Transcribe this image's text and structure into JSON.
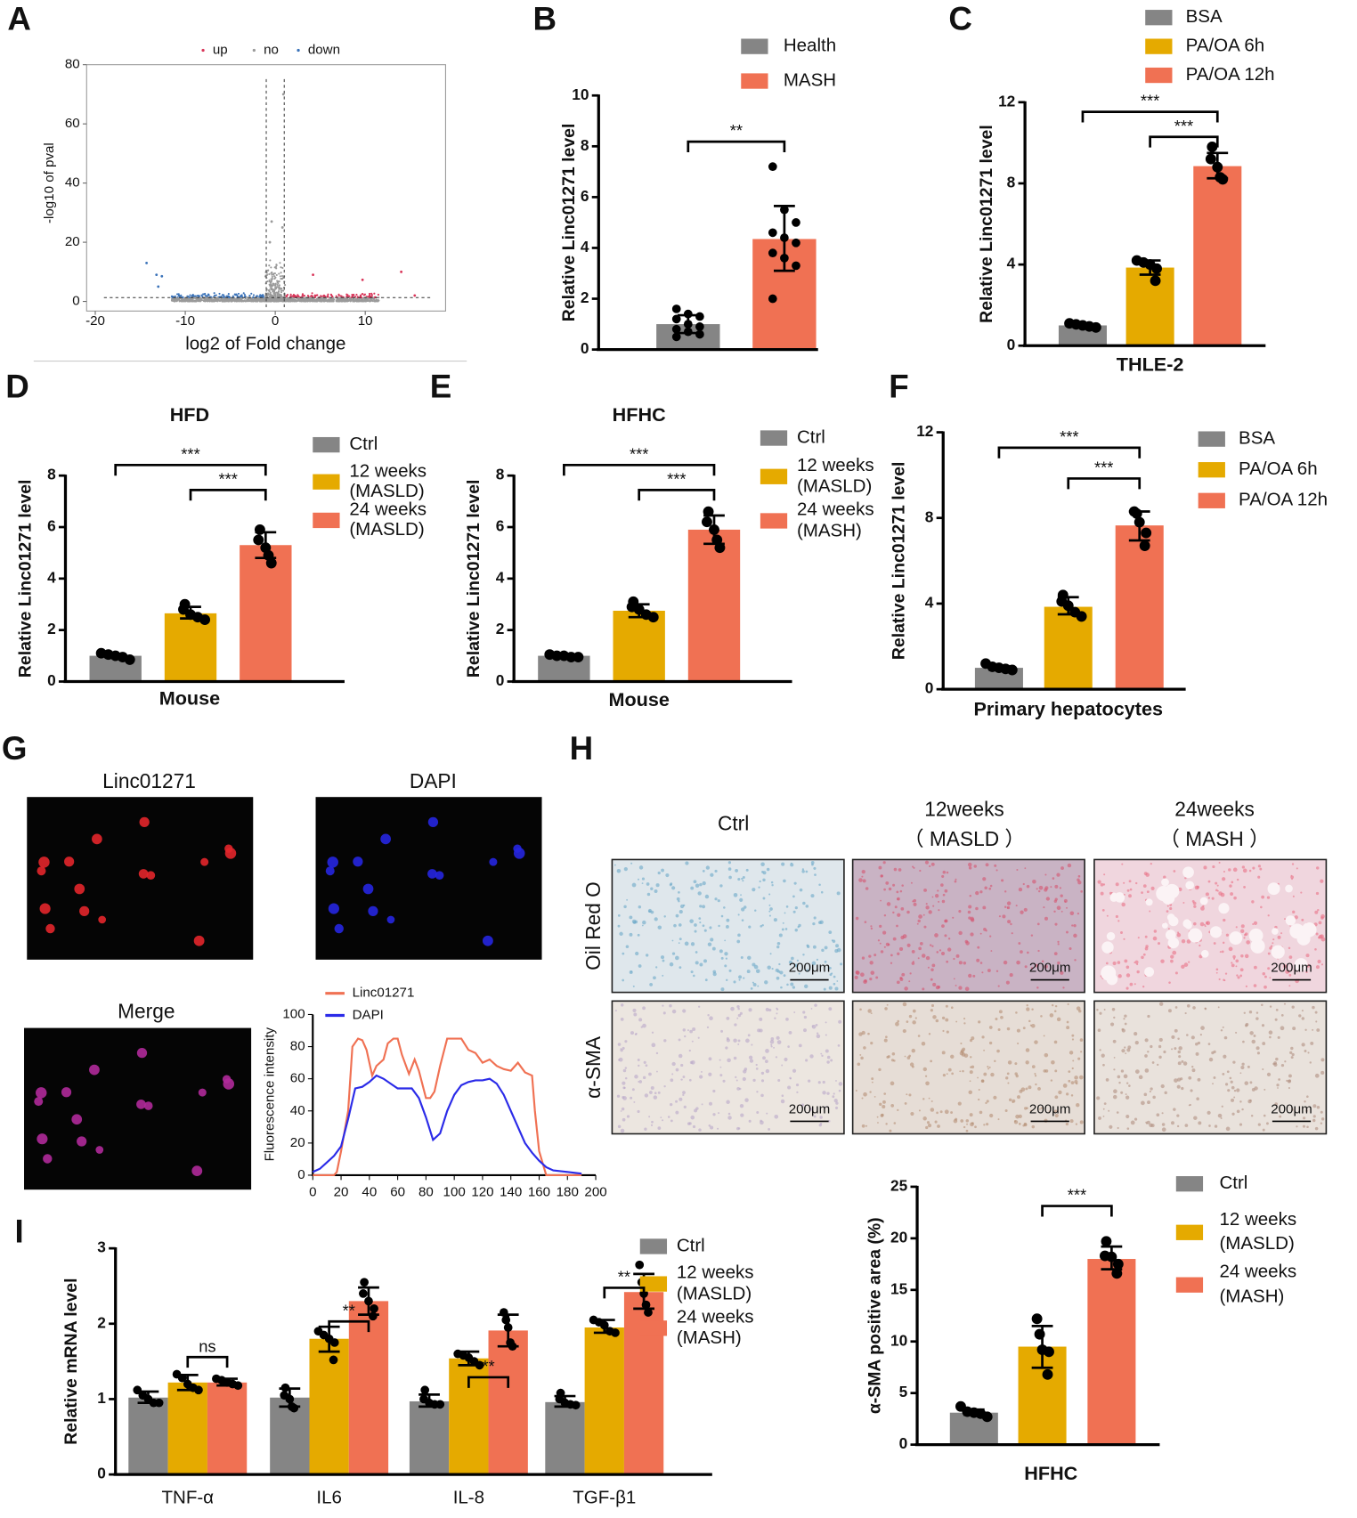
{
  "panel_labels": [
    "A",
    "B",
    "C",
    "D",
    "E",
    "F",
    "G",
    "H",
    "I"
  ],
  "colors": {
    "gray": "#858585",
    "yellow": "#E5AA00",
    "salmon": "#F07153",
    "up": "#D9365A",
    "no": "#9A9A9A",
    "down": "#3B73B9",
    "linc": "#F07153",
    "dapi": "#2B2BE8"
  },
  "chart_data": [
    {
      "panel": "A",
      "type": "scatter",
      "title": "",
      "xlabel": "log2 of Fold change",
      "ylabel": "-log10 of pval",
      "xticks": [
        -20,
        -10,
        0,
        10
      ],
      "yticks": [
        0,
        20,
        40,
        60,
        80
      ],
      "xlim": [
        -20,
        19
      ],
      "ylim": [
        0,
        80
      ],
      "legend": [
        "up",
        "no",
        "down"
      ],
      "legend_position": "top",
      "thresholds": {
        "log2fc": [
          -1,
          1
        ],
        "neg_log10_p": 1.3
      },
      "grid": false
    },
    {
      "panel": "B",
      "type": "bar",
      "ylabel": "Relative Linc01271 level",
      "xlabel": "",
      "yticks": [
        0,
        2,
        4,
        6,
        8,
        10
      ],
      "ylim": [
        0,
        10
      ],
      "legend": [
        [
          "Health"
        ],
        [
          "MASH"
        ]
      ],
      "legend_position": "top-right",
      "bars": [
        {
          "value": 1.0,
          "err": [
            0.65,
            1.35
          ],
          "color": "gray",
          "points": [
            1.6,
            1.4,
            1.3,
            1.2,
            1.0,
            0.9,
            0.8,
            0.7,
            0.6,
            0.5
          ]
        },
        {
          "value": 4.35,
          "err": [
            3.1,
            5.65
          ],
          "color": "salmon",
          "points": [
            7.2,
            5.5,
            5.0,
            4.6,
            4.4,
            4.2,
            3.8,
            3.6,
            3.3,
            2.0
          ]
        }
      ],
      "significance": [
        {
          "from": 0,
          "to": 1,
          "label": "**"
        }
      ]
    },
    {
      "panel": "C",
      "type": "bar",
      "ylabel": "Relative Linc01271 level",
      "xlabel": "THLE-2",
      "yticks": [
        0,
        4,
        8,
        12
      ],
      "ylim": [
        0,
        12
      ],
      "legend": [
        [
          "BSA"
        ],
        [
          "PA/OA 6h"
        ],
        [
          "PA/OA 12h"
        ]
      ],
      "legend_position": "top-right",
      "bars": [
        {
          "value": 1.0,
          "err": [
            0.93,
            1.07
          ],
          "color": "gray",
          "points": [
            1.1,
            1.05,
            1.0,
            0.95,
            0.9
          ]
        },
        {
          "value": 3.85,
          "err": [
            3.5,
            4.2
          ],
          "color": "yellow",
          "points": [
            4.2,
            4.1,
            4.0,
            3.8,
            3.2
          ]
        },
        {
          "value": 8.85,
          "err": [
            8.25,
            9.5
          ],
          "color": "salmon",
          "points": [
            9.8,
            9.2,
            8.8,
            8.3,
            8.2
          ]
        }
      ],
      "significance": [
        {
          "from": 0,
          "to": 2,
          "label": "***"
        },
        {
          "from": 1,
          "to": 2,
          "label": "***"
        }
      ]
    },
    {
      "panel": "D",
      "type": "bar",
      "title": "HFD",
      "ylabel": "Relative Linc01271 level",
      "xlabel": "Mouse",
      "yticks": [
        0,
        2,
        4,
        6,
        8
      ],
      "ylim": [
        0,
        8
      ],
      "legend": [
        [
          "Ctrl"
        ],
        [
          "12 weeks",
          "(MASLD)"
        ],
        [
          "24 weeks",
          "(MASLD)"
        ]
      ],
      "legend_position": "right",
      "bars": [
        {
          "value": 1.0,
          "err": [
            0.93,
            1.07
          ],
          "color": "gray",
          "points": [
            1.1,
            1.05,
            1.0,
            0.95,
            0.85
          ]
        },
        {
          "value": 2.65,
          "err": [
            2.45,
            2.9
          ],
          "color": "yellow",
          "points": [
            3.0,
            2.8,
            2.6,
            2.5,
            2.4
          ]
        },
        {
          "value": 5.3,
          "err": [
            4.8,
            5.8
          ],
          "color": "salmon",
          "points": [
            5.9,
            5.5,
            5.2,
            4.9,
            4.6
          ]
        }
      ],
      "significance": [
        {
          "from": 0,
          "to": 2,
          "label": "***"
        },
        {
          "from": 1,
          "to": 2,
          "label": "***"
        }
      ]
    },
    {
      "panel": "E",
      "type": "bar",
      "title": "HFHC",
      "ylabel": "Relative Linc01271 level",
      "xlabel": "Mouse",
      "yticks": [
        0,
        2,
        4,
        6,
        8
      ],
      "ylim": [
        0,
        8
      ],
      "legend": [
        [
          "Ctrl"
        ],
        [
          "12 weeks",
          "(MASLD)"
        ],
        [
          "24 weeks",
          "(MASH)"
        ]
      ],
      "legend_position": "right",
      "bars": [
        {
          "value": 1.0,
          "err": [
            0.95,
            1.05
          ],
          "color": "gray",
          "points": [
            1.05,
            1.0,
            1.0,
            0.95,
            0.95
          ]
        },
        {
          "value": 2.75,
          "err": [
            2.5,
            3.0
          ],
          "color": "yellow",
          "points": [
            3.1,
            2.9,
            2.8,
            2.6,
            2.5
          ]
        },
        {
          "value": 5.9,
          "err": [
            5.35,
            6.45
          ],
          "color": "salmon",
          "points": [
            6.6,
            6.2,
            5.9,
            5.5,
            5.2
          ]
        }
      ],
      "significance": [
        {
          "from": 0,
          "to": 2,
          "label": "***"
        },
        {
          "from": 1,
          "to": 2,
          "label": "***"
        }
      ]
    },
    {
      "panel": "F",
      "type": "bar",
      "ylabel": "Relative Linc01271 level",
      "xlabel": "Primary hepatocytes",
      "yticks": [
        0,
        4,
        8,
        12
      ],
      "ylim": [
        0,
        12
      ],
      "legend": [
        [
          "BSA"
        ],
        [
          "PA/OA 6h"
        ],
        [
          "PA/OA 12h"
        ]
      ],
      "legend_position": "right",
      "bars": [
        {
          "value": 1.0,
          "err": [
            0.92,
            1.08
          ],
          "color": "gray",
          "points": [
            1.2,
            1.05,
            1.0,
            0.95,
            0.9
          ]
        },
        {
          "value": 3.85,
          "err": [
            3.5,
            4.3
          ],
          "color": "yellow",
          "points": [
            4.4,
            4.1,
            3.9,
            3.6,
            3.4
          ]
        },
        {
          "value": 7.65,
          "err": [
            6.95,
            8.3
          ],
          "color": "salmon",
          "points": [
            8.3,
            8.2,
            7.8,
            7.3,
            6.7
          ]
        }
      ],
      "significance": [
        {
          "from": 0,
          "to": 2,
          "label": "***"
        },
        {
          "from": 1,
          "to": 2,
          "label": "***"
        }
      ]
    },
    {
      "panel": "G",
      "type": "line",
      "ylabel": "Fluorescence intensity",
      "xlabel": "",
      "xticks": [
        0,
        20,
        40,
        60,
        80,
        100,
        120,
        140,
        160,
        180,
        200
      ],
      "yticks": [
        0,
        20,
        40,
        60,
        80,
        100
      ],
      "xlim": [
        0,
        200
      ],
      "ylim": [
        0,
        100
      ],
      "legend_position": "top-left",
      "series": [
        {
          "name": "Linc01271",
          "color": "linc",
          "x": [
            0,
            5,
            10,
            15,
            17,
            20,
            25,
            28,
            32,
            35,
            38,
            42,
            45,
            50,
            53,
            57,
            60,
            63,
            68,
            72,
            75,
            80,
            83,
            86,
            90,
            95,
            100,
            105,
            110,
            115,
            120,
            125,
            130,
            135,
            140,
            145,
            150,
            155,
            157,
            160,
            165,
            175,
            190
          ],
          "y": [
            0,
            0,
            0,
            0,
            2,
            15,
            40,
            80,
            85,
            84,
            78,
            62,
            68,
            72,
            82,
            85,
            85,
            75,
            63,
            72,
            65,
            48,
            48,
            52,
            68,
            85,
            85,
            85,
            78,
            76,
            70,
            72,
            68,
            66,
            65,
            70,
            64,
            62,
            40,
            15,
            0,
            0,
            0
          ]
        },
        {
          "name": "DAPI",
          "color": "dapi",
          "x": [
            0,
            5,
            10,
            15,
            20,
            25,
            30,
            35,
            40,
            45,
            50,
            55,
            60,
            65,
            70,
            75,
            80,
            85,
            90,
            95,
            100,
            105,
            110,
            115,
            120,
            125,
            130,
            135,
            140,
            145,
            150,
            155,
            160,
            165,
            170,
            180,
            190
          ],
          "y": [
            2,
            4,
            8,
            12,
            18,
            35,
            54,
            55,
            58,
            62,
            60,
            57,
            54,
            54,
            54,
            48,
            36,
            22,
            26,
            40,
            50,
            56,
            58,
            59,
            59,
            60,
            57,
            50,
            40,
            30,
            20,
            14,
            9,
            5,
            3,
            2,
            1
          ]
        }
      ]
    },
    {
      "panel": "H",
      "type": "bar",
      "ylabel": "α-SMA positive area (%)",
      "xlabel": "HFHC",
      "yticks": [
        0,
        5,
        10,
        15,
        20,
        25
      ],
      "ylim": [
        0,
        25
      ],
      "legend": [
        [
          "Ctrl"
        ],
        [
          "12 weeks",
          "(MASLD)"
        ],
        [
          "24 weeks",
          "(MASH)"
        ]
      ],
      "legend_position": "right",
      "bars": [
        {
          "value": 3.1,
          "err": [
            2.9,
            3.4
          ],
          "color": "gray",
          "points": [
            3.7,
            3.2,
            3.1,
            3.0,
            2.7
          ]
        },
        {
          "value": 9.5,
          "err": [
            7.45,
            11.5
          ],
          "color": "yellow",
          "points": [
            12.2,
            10.7,
            9.2,
            9.0,
            6.8
          ]
        },
        {
          "value": 18.0,
          "err": [
            17.0,
            19.2
          ],
          "color": "salmon",
          "points": [
            19.7,
            18.3,
            18.2,
            17.5,
            16.6
          ]
        }
      ],
      "significance": [
        {
          "from": 1,
          "to": 2,
          "label": "***"
        }
      ]
    },
    {
      "panel": "I",
      "type": "bar",
      "ylabel": "Relative mRNA level",
      "xlabel": "",
      "yticks": [
        0,
        1,
        2,
        3
      ],
      "ylim": [
        0,
        3
      ],
      "categories": [
        "TNF-α",
        "IL6",
        "IL-8",
        "TGF-β1"
      ],
      "legend": [
        [
          "Ctrl"
        ],
        [
          "12 weeks",
          "(MASLD)"
        ],
        [
          "24 weeks",
          "(MASH)"
        ]
      ],
      "legend_position": "right",
      "series": [
        {
          "name": "Ctrl",
          "color": "gray",
          "values": [
            1.02,
            1.02,
            0.97,
            0.96
          ],
          "err": [
            [
              0.95,
              1.1
            ],
            [
              0.9,
              1.14
            ],
            [
              0.9,
              1.06
            ],
            [
              0.9,
              1.04
            ]
          ],
          "points": [
            [
              1.12,
              1.05,
              1.0,
              0.95,
              0.95
            ],
            [
              1.15,
              1.05,
              1.0,
              0.9,
              0.88
            ],
            [
              1.12,
              1.0,
              0.95,
              0.93,
              0.93
            ],
            [
              1.08,
              1.0,
              0.95,
              0.93,
              0.92
            ]
          ]
        },
        {
          "name": "12 weeks (MASLD)",
          "color": "yellow",
          "values": [
            1.22,
            1.8,
            1.54,
            1.95
          ],
          "err": [
            [
              1.12,
              1.32
            ],
            [
              1.63,
              1.96
            ],
            [
              1.45,
              1.63
            ],
            [
              1.88,
              2.05
            ]
          ],
          "points": [
            [
              1.33,
              1.28,
              1.2,
              1.15,
              1.12
            ],
            [
              1.9,
              1.85,
              1.8,
              1.75,
              1.52
            ],
            [
              1.6,
              1.58,
              1.55,
              1.5,
              1.45
            ],
            [
              2.05,
              2.02,
              1.98,
              1.9,
              1.88
            ]
          ]
        },
        {
          "name": "24 weeks (MASH)",
          "color": "salmon",
          "values": [
            1.22,
            2.3,
            1.91,
            2.42
          ],
          "err": [
            [
              1.18,
              1.27
            ],
            [
              2.12,
              2.48
            ],
            [
              1.7,
              2.12
            ],
            [
              2.2,
              2.66
            ]
          ],
          "points": [
            [
              1.27,
              1.25,
              1.22,
              1.2,
              1.18
            ],
            [
              2.55,
              2.4,
              2.3,
              2.2,
              2.1
            ],
            [
              2.15,
              2.05,
              1.95,
              1.75,
              1.7
            ],
            [
              2.78,
              2.55,
              2.4,
              2.25,
              2.15
            ]
          ]
        }
      ],
      "significance": [
        {
          "category": 0,
          "label": "ns"
        },
        {
          "category": 1,
          "label": "**"
        },
        {
          "category": 2,
          "label": "**"
        },
        {
          "category": 3,
          "label": "**"
        }
      ]
    }
  ],
  "panel_g": {
    "images": [
      "Linc01271",
      "DAPI",
      "Merge"
    ]
  },
  "panel_h": {
    "columns": [
      [
        "Ctrl"
      ],
      [
        "12weeks",
        "（ MASLD ）"
      ],
      [
        "24weeks",
        "（ MASH ）"
      ]
    ],
    "rows": [
      "Oil Red O",
      "α-SMA"
    ],
    "scale_bar": "200μm"
  }
}
